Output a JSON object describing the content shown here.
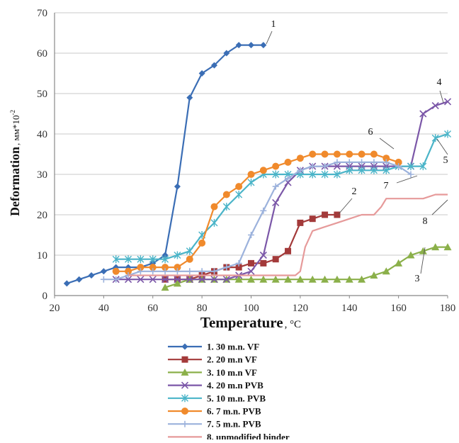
{
  "chart_data": {
    "type": "line",
    "xlabel": "Temperature",
    "xlabel_unit": "°C",
    "ylabel": "Deformation",
    "ylabel_unit": "мм*10",
    "ylabel_unit_exp": "-2",
    "xlim": [
      20,
      180
    ],
    "ylim": [
      0,
      70
    ],
    "xticks": [
      20,
      40,
      60,
      80,
      100,
      120,
      140,
      160,
      180
    ],
    "yticks": [
      0,
      10,
      20,
      30,
      40,
      50,
      60,
      70
    ],
    "grid": "horizontal",
    "legend_position": "bottom",
    "series": [
      {
        "name": "1. 30 m.n. VF",
        "label": "1",
        "color": "#3b6eb5",
        "marker": "diamond",
        "x": [
          25,
          30,
          35,
          40,
          45,
          50,
          55,
          60,
          65,
          70,
          75,
          80,
          85,
          90,
          95,
          100,
          105
        ],
        "y": [
          3,
          4,
          5,
          6,
          7,
          7,
          7,
          8,
          10,
          27,
          49,
          55,
          57,
          60,
          62,
          62,
          62
        ]
      },
      {
        "name": "2. 20 m.n VF",
        "label": "2",
        "color": "#a33a3a",
        "marker": "square",
        "x": [
          65,
          70,
          75,
          80,
          85,
          90,
          95,
          100,
          105,
          110,
          115,
          120,
          125,
          130,
          135
        ],
        "y": [
          4,
          4,
          4,
          5,
          6,
          7,
          7,
          8,
          8,
          9,
          11,
          18,
          19,
          20,
          20
        ]
      },
      {
        "name": "3. 10 m.n VF",
        "label": "3",
        "color": "#8bb04a",
        "marker": "triangle",
        "x": [
          65,
          70,
          75,
          80,
          85,
          90,
          95,
          100,
          105,
          110,
          115,
          120,
          125,
          130,
          135,
          140,
          145,
          150,
          155,
          160,
          165,
          170,
          175,
          180
        ],
        "y": [
          2,
          3,
          4,
          4,
          4,
          4,
          4,
          4,
          4,
          4,
          4,
          4,
          4,
          4,
          4,
          4,
          4,
          5,
          6,
          8,
          10,
          11,
          12,
          12
        ]
      },
      {
        "name": "4. 20 m.n PVB",
        "label": "4",
        "color": "#7b57a8",
        "marker": "x",
        "x": [
          45,
          50,
          55,
          60,
          65,
          70,
          75,
          80,
          85,
          90,
          95,
          100,
          105,
          110,
          115,
          120,
          125,
          130,
          135,
          140,
          145,
          150,
          155,
          160,
          165,
          170,
          175,
          180
        ],
        "y": [
          4,
          4,
          4,
          4,
          4,
          4,
          4,
          4,
          4,
          4,
          5,
          6,
          10,
          23,
          28,
          31,
          32,
          32,
          32,
          32,
          32,
          32,
          32,
          32,
          32,
          45,
          47,
          48
        ]
      },
      {
        "name": "5. 10 m.n. PVB",
        "label": "5",
        "color": "#4ab4c8",
        "marker": "star",
        "x": [
          45,
          50,
          55,
          60,
          65,
          70,
          75,
          80,
          85,
          90,
          95,
          100,
          105,
          110,
          115,
          120,
          125,
          130,
          135,
          140,
          145,
          150,
          155,
          160,
          165,
          170,
          175,
          180
        ],
        "y": [
          9,
          9,
          9,
          9,
          9,
          10,
          11,
          15,
          18,
          22,
          25,
          28,
          30,
          30,
          30,
          30,
          30,
          30,
          30,
          31,
          31,
          31,
          31,
          32,
          32,
          32,
          39,
          40
        ]
      },
      {
        "name": "6. 7 m.n. PVB",
        "label": "6",
        "color": "#f08a2c",
        "marker": "circle",
        "x": [
          45,
          50,
          55,
          60,
          65,
          70,
          75,
          80,
          85,
          90,
          95,
          100,
          105,
          110,
          115,
          120,
          125,
          130,
          135,
          140,
          145,
          150,
          155,
          160
        ],
        "y": [
          6,
          6,
          7,
          7,
          7,
          7,
          9,
          13,
          22,
          25,
          27,
          30,
          31,
          32,
          33,
          34,
          35,
          35,
          35,
          35,
          35,
          35,
          34,
          33
        ]
      },
      {
        "name": "7. 5 m.n. PVB",
        "label": "7",
        "color": "#9cb2dc",
        "marker": "plus",
        "x": [
          40,
          45,
          50,
          55,
          60,
          65,
          70,
          75,
          80,
          85,
          90,
          95,
          100,
          105,
          110,
          115,
          120,
          125,
          130,
          135,
          140,
          145,
          150,
          155,
          160,
          165
        ],
        "y": [
          4,
          4,
          5,
          6,
          6,
          6,
          6,
          6,
          6,
          6,
          7,
          8,
          15,
          21,
          27,
          29,
          31,
          32,
          32,
          33,
          33,
          33,
          33,
          33,
          32,
          30
        ]
      },
      {
        "name": "8. unmodified binder",
        "label": "8",
        "color": "#e69a9a",
        "marker": "none",
        "x": [
          50,
          60,
          70,
          80,
          90,
          100,
          110,
          115,
          118,
          120,
          122,
          125,
          130,
          135,
          140,
          145,
          150,
          153,
          155,
          160,
          170,
          175,
          180
        ],
        "y": [
          5,
          5,
          5,
          5,
          5,
          5,
          5,
          5,
          5,
          6,
          12,
          16,
          17,
          18,
          19,
          20,
          20,
          22,
          24,
          24,
          24,
          25,
          25
        ]
      }
    ]
  }
}
